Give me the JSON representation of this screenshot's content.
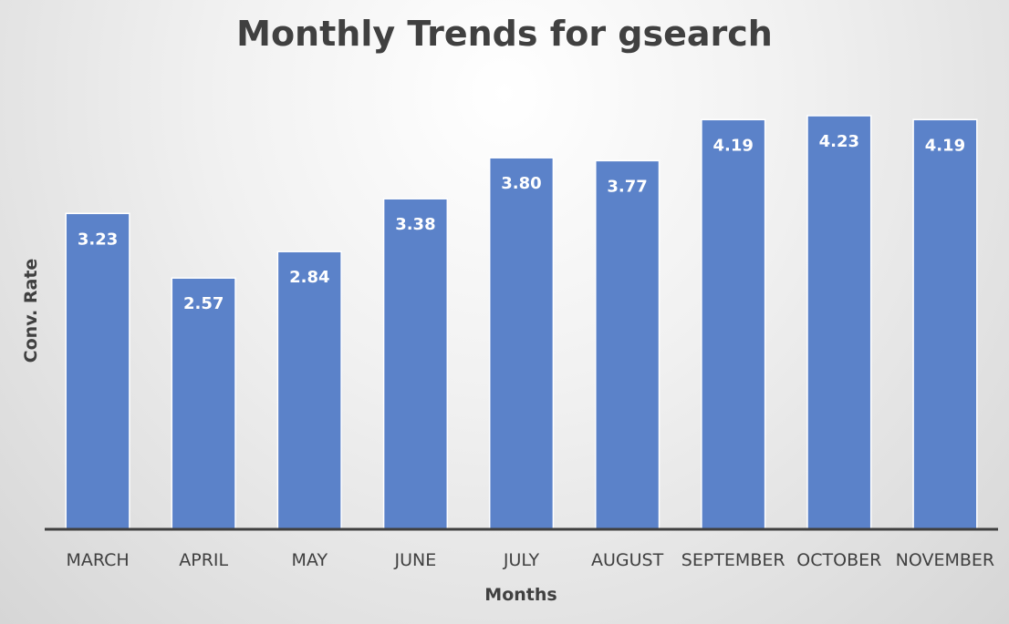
{
  "chart_data": {
    "type": "bar",
    "title": "Monthly Trends for gsearch",
    "xlabel": "Months",
    "ylabel": "Conv. Rate",
    "categories": [
      "MARCH",
      "APRIL",
      "MAY",
      "JUNE",
      "JULY",
      "AUGUST",
      "SEPTEMBER",
      "OCTOBER",
      "NOVEMBER"
    ],
    "values": [
      3.23,
      2.57,
      2.84,
      3.38,
      3.8,
      3.77,
      4.19,
      4.23,
      4.19
    ],
    "data_labels": [
      "3.23",
      "2.57",
      "2.84",
      "3.38",
      "3.80",
      "3.77",
      "4.19",
      "4.23",
      "4.19"
    ],
    "ylim": [
      0,
      4.23
    ],
    "grid": false,
    "legend": "none",
    "bar_color": "#5B82C9",
    "axis_color": "#404040"
  }
}
